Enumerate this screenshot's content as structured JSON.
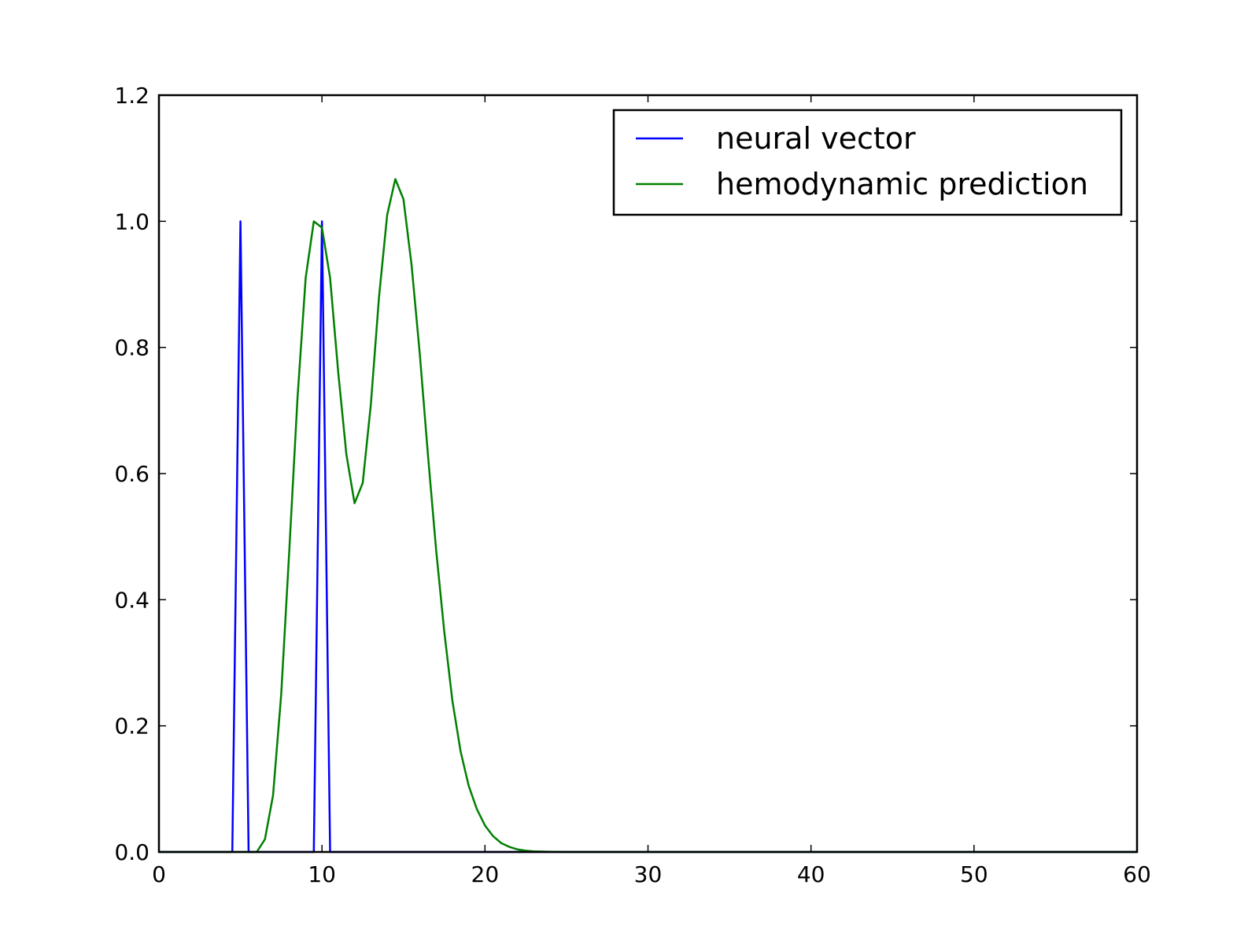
{
  "chart_data": {
    "type": "line",
    "title": "",
    "xlabel": "",
    "ylabel": "",
    "xlim": [
      0,
      60
    ],
    "ylim": [
      0,
      1.2
    ],
    "xticks": [
      "0",
      "10",
      "20",
      "30",
      "40",
      "50",
      "60"
    ],
    "yticks": [
      "0.0",
      "0.2",
      "0.4",
      "0.6",
      "0.8",
      "1.0",
      "1.2"
    ],
    "grid": false,
    "legend_position": "top-right",
    "series": [
      {
        "name": "neural vector",
        "color": "#0000ff",
        "points": [
          [
            0,
            0
          ],
          [
            4.5,
            0
          ],
          [
            5,
            1
          ],
          [
            5.5,
            0
          ],
          [
            9.5,
            0
          ],
          [
            10,
            1
          ],
          [
            10.5,
            0
          ],
          [
            60,
            0
          ]
        ]
      },
      {
        "name": "hemodynamic prediction",
        "color": "#008000",
        "points": [
          [
            0,
            0
          ],
          [
            5.5,
            0
          ],
          [
            6,
            0
          ],
          [
            6.5,
            0.02
          ],
          [
            7,
            0.09
          ],
          [
            7.5,
            0.25
          ],
          [
            8,
            0.48
          ],
          [
            8.5,
            0.72
          ],
          [
            9,
            0.91
          ],
          [
            9.5,
            1.0
          ],
          [
            10,
            0.99
          ],
          [
            10.5,
            0.91
          ],
          [
            11,
            0.76
          ],
          [
            11.5,
            0.63
          ],
          [
            12,
            0.553
          ],
          [
            12.5,
            0.585
          ],
          [
            13,
            0.71
          ],
          [
            13.5,
            0.88
          ],
          [
            14,
            1.01
          ],
          [
            14.5,
            1.067
          ],
          [
            15,
            1.035
          ],
          [
            15.5,
            0.93
          ],
          [
            16,
            0.79
          ],
          [
            16.5,
            0.63
          ],
          [
            17,
            0.48
          ],
          [
            17.5,
            0.35
          ],
          [
            18,
            0.24
          ],
          [
            18.5,
            0.16
          ],
          [
            19,
            0.105
          ],
          [
            19.5,
            0.068
          ],
          [
            20,
            0.042
          ],
          [
            20.5,
            0.025
          ],
          [
            21,
            0.014
          ],
          [
            21.5,
            0.008
          ],
          [
            22,
            0.004
          ],
          [
            22.5,
            0.002
          ],
          [
            23,
            0.001
          ],
          [
            24,
            0.0003
          ],
          [
            25,
            0
          ],
          [
            60,
            0
          ]
        ]
      }
    ]
  }
}
